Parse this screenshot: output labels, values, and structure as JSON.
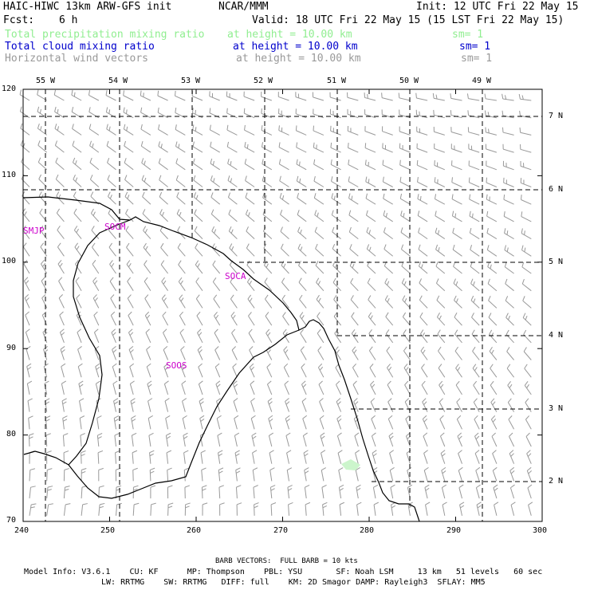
{
  "header": {
    "title": "HAIC-HIWC 13km ARW-GFS init",
    "org": "NCAR/MMM",
    "init": "Init: 12 UTC Fri 22 May 15",
    "fcst_label": "Fcst:",
    "fcst_value": "6 h",
    "valid": "Valid: 18 UTC Fri 22 May 15 (15 LST Fri 22 May 15)"
  },
  "fields": [
    {
      "name": "Total precipitation mixing ratio",
      "height": "at height = 10.00 km",
      "sm": "sm= 1",
      "color": "#90ee90"
    },
    {
      "name": "Total cloud mixing ratio",
      "height": "at height = 10.00 km",
      "sm": "sm= 1",
      "color": "#0000cc"
    },
    {
      "name": "Horizontal wind vectors",
      "height": "at height = 10.00 km",
      "sm": "sm= 1",
      "color": "#999999"
    }
  ],
  "map": {
    "x_ticks": [
      "240",
      "250",
      "260",
      "270",
      "280",
      "290",
      "300"
    ],
    "y_ticks": [
      "70",
      "80",
      "90",
      "100",
      "110",
      "120"
    ],
    "lon_labels": [
      "55 W",
      "54 W",
      "53 W",
      "52 W",
      "51 W",
      "50 W",
      "49 W"
    ],
    "lat_labels": [
      "7 N",
      "6 N",
      "5 N",
      "4 N",
      "3 N",
      "2 N"
    ],
    "stations": [
      "SMJP",
      "SOCM",
      "SOCA",
      "SOOS"
    ],
    "station_color": "#cc00cc",
    "barb_color": "#999999",
    "coast_color": "#000000"
  },
  "footer": {
    "barb_note": "BARB VECTORS:  FULL BARB = 10 kts",
    "model_info_line1": "Model Info: V3.6.1    CU: KF      MP: Thompson    PBL: YSU       SF: Noah LSM     13 km   51 levels   60 sec",
    "model_info_line2": "LW: RRTMG    SW: RRTMG   DIFF: full    KM: 2D Smagor DAMP: Rayleigh3  SFLAY: MM5"
  }
}
